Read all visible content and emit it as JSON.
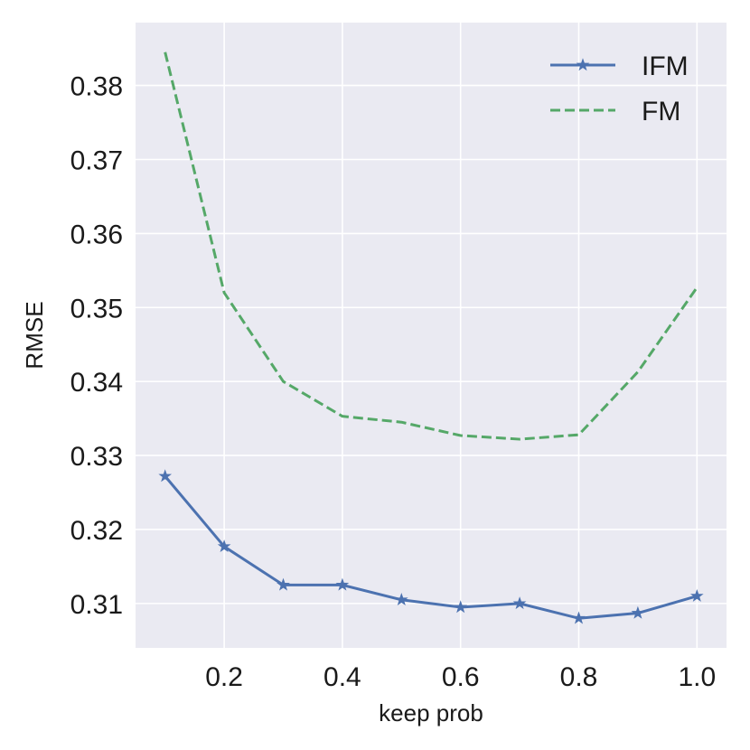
{
  "chart_data": {
    "type": "line",
    "xlabel": "keep prob",
    "ylabel": "RMSE",
    "xlim": [
      0.05,
      1.05
    ],
    "ylim": [
      0.304,
      0.3885
    ],
    "x": [
      0.1,
      0.2,
      0.3,
      0.4,
      0.5,
      0.6,
      0.7,
      0.8,
      0.9,
      1.0
    ],
    "x_ticks": [
      "0.2",
      "0.4",
      "0.6",
      "0.8",
      "1.0"
    ],
    "x_tick_values": [
      0.2,
      0.4,
      0.6,
      0.8,
      1.0
    ],
    "y_ticks": [
      "0.31",
      "0.32",
      "0.33",
      "0.34",
      "0.35",
      "0.36",
      "0.37",
      "0.38"
    ],
    "y_tick_values": [
      0.31,
      0.32,
      0.33,
      0.34,
      0.35,
      0.36,
      0.37,
      0.38
    ],
    "grid": true,
    "legend_position": "top-right",
    "series": [
      {
        "name": "IFM",
        "color": "#4c72b0",
        "style": "solid",
        "marker": "star",
        "values": [
          0.3272,
          0.3177,
          0.3125,
          0.3125,
          0.3105,
          0.3095,
          0.31,
          0.308,
          0.3087,
          0.311
        ]
      },
      {
        "name": "FM",
        "color": "#55a868",
        "style": "dashed",
        "marker": "none",
        "values": [
          0.3845,
          0.352,
          0.34,
          0.3353,
          0.3345,
          0.3327,
          0.3322,
          0.3328,
          0.3413,
          0.3527
        ]
      }
    ],
    "colors": {
      "plot_background": "#eaeaf2",
      "grid": "#ffffff"
    }
  }
}
